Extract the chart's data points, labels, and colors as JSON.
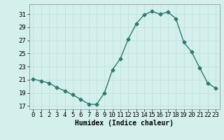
{
  "x": [
    0,
    1,
    2,
    3,
    4,
    5,
    6,
    7,
    8,
    9,
    10,
    11,
    12,
    13,
    14,
    15,
    16,
    17,
    18,
    19,
    20,
    21,
    22,
    23
  ],
  "y": [
    21.1,
    20.8,
    20.5,
    19.8,
    19.3,
    18.7,
    18.0,
    17.3,
    17.2,
    19.0,
    22.5,
    24.2,
    27.2,
    29.5,
    30.9,
    31.4,
    31.0,
    31.3,
    30.3,
    26.7,
    25.2,
    22.8,
    20.5,
    19.7
  ],
  "line_color": "#2d7a6e",
  "marker": "D",
  "marker_size": 2.5,
  "linewidth": 1.0,
  "bg_color": "#d4f0ec",
  "grid_color": "#c0ddd9",
  "xlabel": "Humidex (Indice chaleur)",
  "xlabel_fontsize": 7,
  "tick_fontsize": 6.5,
  "ylim": [
    16.5,
    32.5
  ],
  "xlim": [
    -0.5,
    23.5
  ],
  "yticks": [
    17,
    19,
    21,
    23,
    25,
    27,
    29,
    31
  ],
  "xticks": [
    0,
    1,
    2,
    3,
    4,
    5,
    6,
    7,
    8,
    9,
    10,
    11,
    12,
    13,
    14,
    15,
    16,
    17,
    18,
    19,
    20,
    21,
    22,
    23
  ]
}
